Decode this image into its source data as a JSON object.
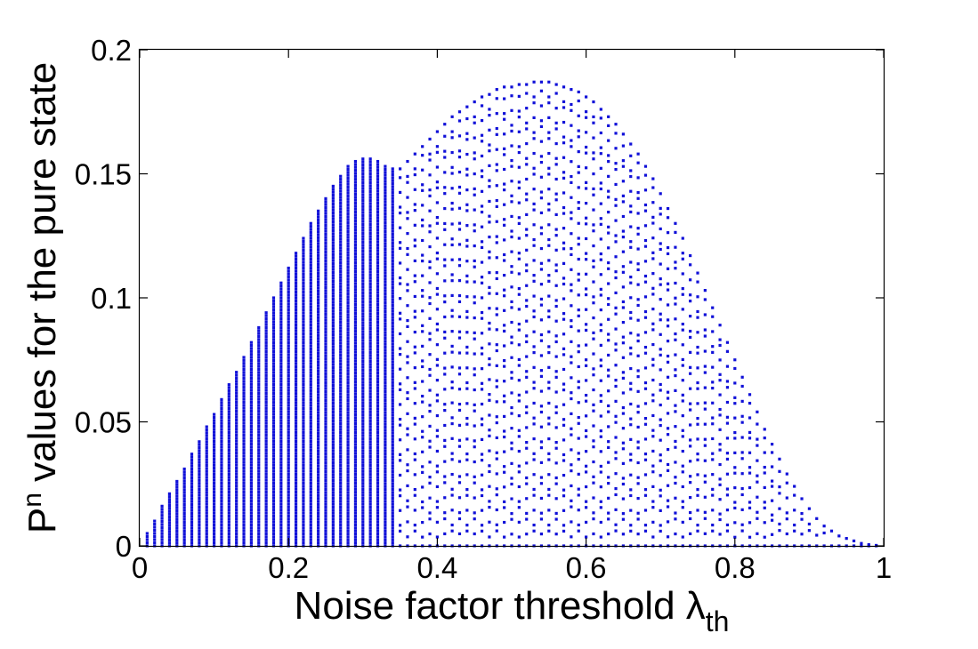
{
  "chart_data": {
    "type": "scatter",
    "title": "",
    "xlabel": "Noise factor threshold λ",
    "xlabel_subscript": "th",
    "ylabel": "P",
    "ylabel_superscript": "n",
    "ylabel_rest": " values for the pure state",
    "xlim": [
      0,
      1
    ],
    "ylim": [
      0,
      0.2
    ],
    "x_ticks": [
      "0",
      "0.2",
      "0.4",
      "0.6",
      "0.8",
      "1"
    ],
    "y_ticks": [
      "0",
      "0.05",
      "0.1",
      "0.15",
      "0.2"
    ],
    "grid": false,
    "legend": "none",
    "marker_color": "#1010d8",
    "series": [
      {
        "x": [
          0.01,
          0.02,
          0.03,
          0.04,
          0.05,
          0.06,
          0.07,
          0.08,
          0.09,
          0.1,
          0.11,
          0.12,
          0.13,
          0.14,
          0.15,
          0.16,
          0.17,
          0.18,
          0.19,
          0.2,
          0.21,
          0.22,
          0.23,
          0.24,
          0.25,
          0.26,
          0.27,
          0.28,
          0.29,
          0.3,
          0.31,
          0.32,
          0.33,
          0.34,
          0.35,
          0.36,
          0.37,
          0.38,
          0.39,
          0.4,
          0.41,
          0.42,
          0.43,
          0.44,
          0.45,
          0.46,
          0.47,
          0.48,
          0.49,
          0.5,
          0.51,
          0.52,
          0.53,
          0.54,
          0.55,
          0.56,
          0.57,
          0.58,
          0.59,
          0.6,
          0.61,
          0.62,
          0.63,
          0.64,
          0.65,
          0.66,
          0.67,
          0.68,
          0.69,
          0.7,
          0.71,
          0.72,
          0.73,
          0.74,
          0.75,
          0.76,
          0.77,
          0.78,
          0.79,
          0.8,
          0.81,
          0.82,
          0.83,
          0.84,
          0.85,
          0.86,
          0.87,
          0.88,
          0.89,
          0.9,
          0.91,
          0.92,
          0.93,
          0.94,
          0.95,
          0.96,
          0.97,
          0.98,
          0.99
        ],
        "y_max": [
          0.005,
          0.01,
          0.016,
          0.021,
          0.026,
          0.031,
          0.037,
          0.042,
          0.048,
          0.053,
          0.059,
          0.065,
          0.07,
          0.076,
          0.082,
          0.088,
          0.094,
          0.1,
          0.106,
          0.112,
          0.118,
          0.124,
          0.13,
          0.135,
          0.14,
          0.145,
          0.149,
          0.153,
          0.155,
          0.156,
          0.156,
          0.155,
          0.153,
          0.152,
          0.152,
          0.155,
          0.158,
          0.161,
          0.164,
          0.167,
          0.17,
          0.173,
          0.175,
          0.177,
          0.179,
          0.181,
          0.182,
          0.184,
          0.185,
          0.185,
          0.186,
          0.186,
          0.187,
          0.187,
          0.187,
          0.186,
          0.185,
          0.184,
          0.183,
          0.181,
          0.179,
          0.176,
          0.173,
          0.17,
          0.166,
          0.162,
          0.158,
          0.153,
          0.148,
          0.142,
          0.136,
          0.13,
          0.124,
          0.117,
          0.11,
          0.103,
          0.096,
          0.089,
          0.082,
          0.075,
          0.068,
          0.061,
          0.054,
          0.047,
          0.041,
          0.035,
          0.029,
          0.024,
          0.019,
          0.015,
          0.011,
          0.008,
          0.006,
          0.004,
          0.003,
          0.002,
          0.001,
          0.0005,
          0.0002
        ]
      }
    ]
  }
}
